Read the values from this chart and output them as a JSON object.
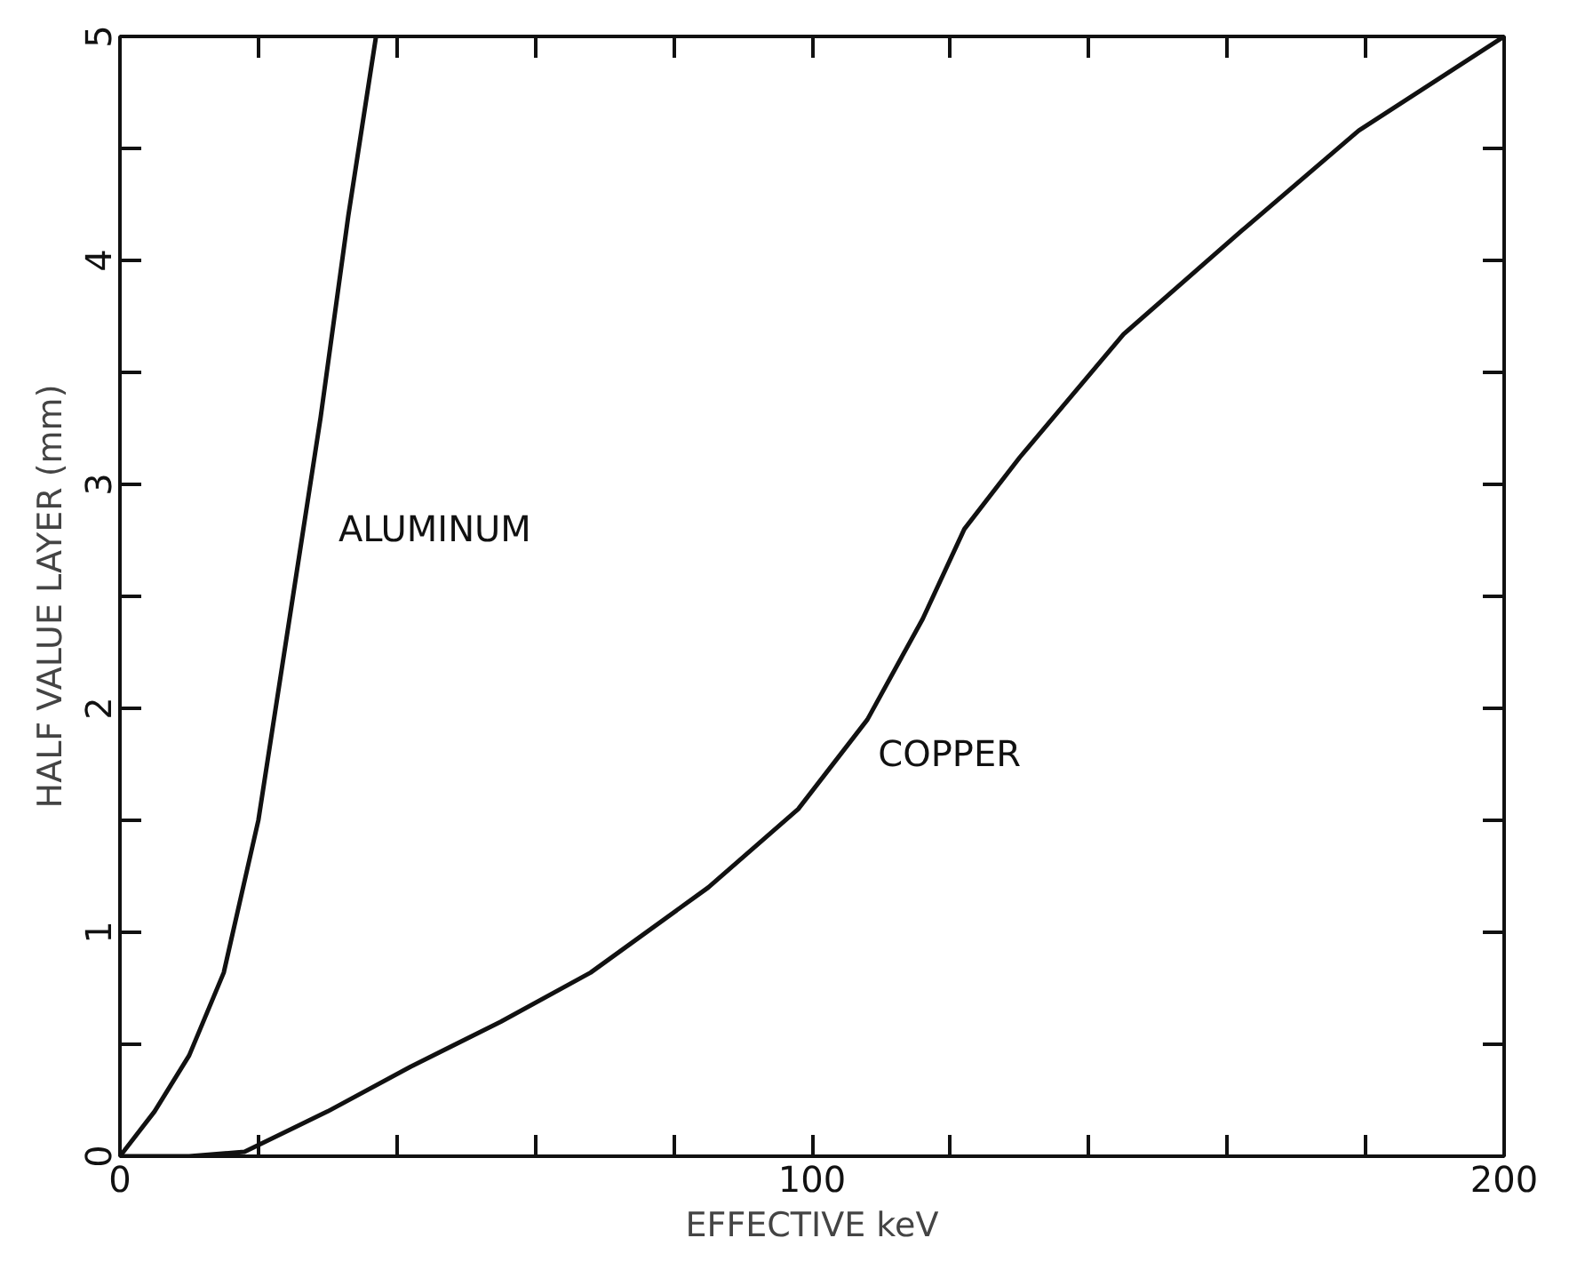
{
  "chart_data": {
    "type": "line",
    "xlabel": "EFFECTIVE keV",
    "ylabel": "HALF VALUE LAYER (mm)",
    "xlim": [
      0,
      200
    ],
    "ylim": [
      0,
      5
    ],
    "xticks": [
      0,
      {
        "value": 20,
        "label": null
      },
      {
        "value": 40,
        "label": null
      },
      {
        "value": 60,
        "label": null
      },
      {
        "value": 80,
        "label": null
      },
      100,
      {
        "value": 120,
        "label": null
      },
      {
        "value": 140,
        "label": null
      },
      {
        "value": 160,
        "label": null
      },
      {
        "value": 180,
        "label": null
      },
      200
    ],
    "yticks": [
      0,
      {
        "value": 0.5,
        "label": null
      },
      1,
      {
        "value": 1.5,
        "label": null
      },
      2,
      {
        "value": 2.5,
        "label": null
      },
      3,
      {
        "value": 3.5,
        "label": null
      },
      4,
      {
        "value": 4.5,
        "label": null
      },
      5
    ],
    "grid": false,
    "legend": false,
    "marker": "none",
    "line_style": "solid",
    "series": [
      {
        "name": "ALUMINUM",
        "color": "#111111",
        "x": [
          0,
          5,
          10,
          15,
          20,
          22,
          25,
          29,
          33,
          37
        ],
        "values": [
          0,
          0.2,
          0.45,
          0.82,
          1.5,
          1.9,
          2.5,
          3.3,
          4.2,
          5
        ]
      },
      {
        "name": "COPPER",
        "color": "#111111",
        "x": [
          0,
          10,
          18,
          30,
          42,
          55,
          68,
          85,
          98,
          108,
          116,
          122,
          130,
          145,
          162,
          179,
          200
        ],
        "values": [
          0,
          0,
          0.02,
          0.2,
          0.4,
          0.6,
          0.82,
          1.2,
          1.55,
          1.95,
          2.4,
          2.8,
          3.12,
          3.67,
          4.13,
          4.58,
          5
        ]
      }
    ]
  }
}
